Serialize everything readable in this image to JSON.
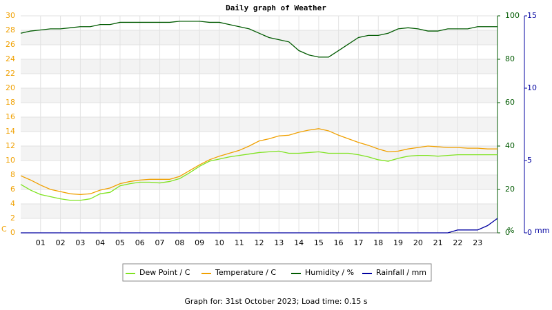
{
  "chart_data": {
    "type": "line",
    "title": "Daily graph of Weather",
    "footer": "Graph for: 31st October 2023; Load time: 0.15 s",
    "y_label": "C",
    "y2_label": "%",
    "y3_label": "mm",
    "x": [
      0,
      0.5,
      1,
      1.5,
      2,
      2.5,
      3,
      3.5,
      4,
      4.5,
      5,
      5.5,
      6,
      6.5,
      7,
      7.5,
      8,
      8.5,
      9,
      9.5,
      10,
      10.5,
      11,
      11.5,
      12,
      12.5,
      13,
      13.5,
      14,
      14.5,
      15,
      15.5,
      16,
      16.5,
      17,
      17.5,
      18,
      18.5,
      19,
      19.5,
      20,
      20.5,
      21,
      21.5,
      22,
      22.5,
      23,
      23.5,
      24
    ],
    "xlim": [
      0,
      24
    ],
    "xticks": [
      {
        "value": 1,
        "label": "01"
      },
      {
        "value": 2,
        "label": "02"
      },
      {
        "value": 3,
        "label": "03"
      },
      {
        "value": 4,
        "label": "04"
      },
      {
        "value": 5,
        "label": "05"
      },
      {
        "value": 6,
        "label": "06"
      },
      {
        "value": 7,
        "label": "07"
      },
      {
        "value": 8,
        "label": "08"
      },
      {
        "value": 9,
        "label": "09"
      },
      10,
      11,
      12,
      13,
      14,
      15,
      16,
      17,
      18,
      19,
      20,
      21,
      22,
      23
    ],
    "ylim": [
      0,
      30
    ],
    "yticks": [
      0,
      2,
      4,
      6,
      8,
      10,
      12,
      14,
      16,
      18,
      20,
      22,
      24,
      26,
      28,
      30
    ],
    "y2lim": [
      0,
      100
    ],
    "y2ticks": [
      0,
      20,
      40,
      60,
      80,
      100
    ],
    "y3lim": [
      0,
      15
    ],
    "y3ticks": [
      0,
      5,
      10,
      15
    ],
    "grid": true,
    "series": [
      {
        "name": "Dew Point / C",
        "color": "#7fe320",
        "axis": "y",
        "values": [
          6.7,
          5.9,
          5.3,
          5.0,
          4.7,
          4.5,
          4.5,
          4.7,
          5.4,
          5.6,
          6.5,
          6.8,
          7.0,
          7.0,
          6.9,
          7.1,
          7.5,
          8.3,
          9.2,
          9.9,
          10.2,
          10.5,
          10.7,
          10.9,
          11.1,
          11.2,
          11.3,
          11.0,
          11.0,
          11.1,
          11.2,
          11.0,
          11.0,
          11.0,
          10.8,
          10.5,
          10.1,
          9.9,
          10.3,
          10.6,
          10.7,
          10.7,
          10.6,
          10.7,
          10.8,
          10.8,
          10.8,
          10.8,
          10.8
        ]
      },
      {
        "name": "Temperature / C",
        "color": "#f0a000",
        "axis": "y",
        "values": [
          7.9,
          7.3,
          6.6,
          6.0,
          5.7,
          5.4,
          5.3,
          5.4,
          5.9,
          6.2,
          6.8,
          7.1,
          7.3,
          7.4,
          7.4,
          7.4,
          7.8,
          8.6,
          9.4,
          10.1,
          10.6,
          11.0,
          11.4,
          12.0,
          12.7,
          13.0,
          13.4,
          13.5,
          13.9,
          14.2,
          14.4,
          14.1,
          13.5,
          13.0,
          12.5,
          12.1,
          11.6,
          11.2,
          11.3,
          11.6,
          11.8,
          12.0,
          11.9,
          11.8,
          11.8,
          11.7,
          11.7,
          11.6,
          11.6
        ]
      },
      {
        "name": "Humidity / %",
        "color": "#005a00",
        "axis": "y2",
        "values": [
          92,
          93,
          93.5,
          94,
          94,
          94.5,
          95,
          95,
          96,
          96,
          97,
          97,
          97,
          97,
          97,
          97,
          97.5,
          97.5,
          97.5,
          97,
          97,
          96,
          95,
          94,
          92,
          90,
          89,
          88,
          84,
          82,
          81,
          81,
          84,
          87,
          90,
          91,
          91,
          92,
          94,
          94.5,
          94,
          93,
          93,
          94,
          94,
          94,
          95,
          95,
          95
        ]
      },
      {
        "name": "Rainfall / mm",
        "color": "#0000a0",
        "axis": "y3",
        "values": [
          0,
          0,
          0,
          0,
          0,
          0,
          0,
          0,
          0,
          0,
          0,
          0,
          0,
          0,
          0,
          0,
          0,
          0,
          0,
          0,
          0,
          0,
          0,
          0,
          0,
          0,
          0,
          0,
          0,
          0,
          0,
          0,
          0,
          0,
          0,
          0,
          0,
          0,
          0,
          0,
          0,
          0,
          0,
          0,
          0.2,
          0.2,
          0.2,
          0.5,
          1.0
        ]
      }
    ]
  }
}
